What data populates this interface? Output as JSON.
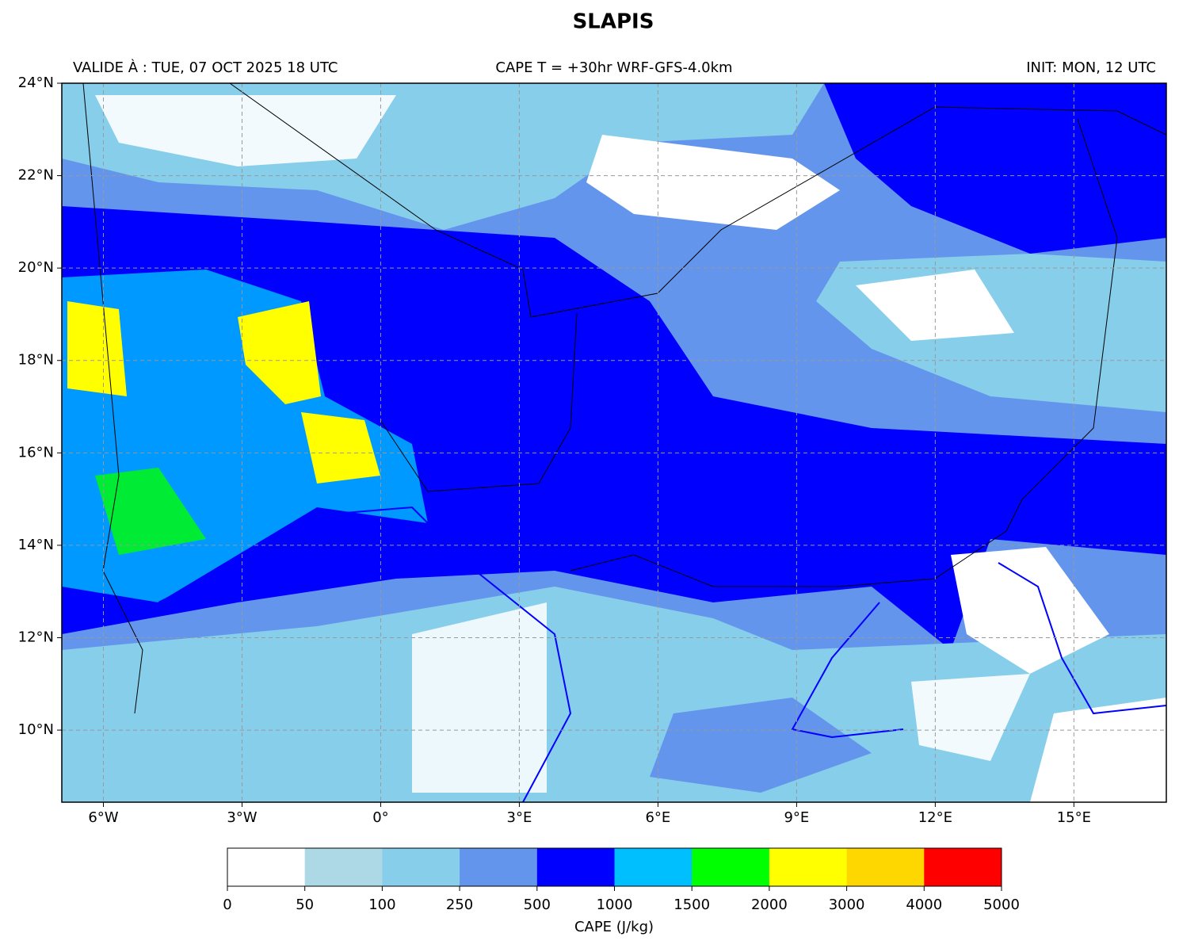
{
  "chart_data": {
    "type": "map",
    "title": "SLAPIS",
    "valid_label": "VALIDE À : TUE, 07 OCT 2025 18 UTC",
    "run_label": "CAPE T = +30hr WRF-GFS-4.0km",
    "init_label": "INIT: MON, 12 UTC",
    "xlim": [
      -6.9,
      17
    ],
    "ylim": [
      8.44,
      24
    ],
    "xticks": [
      {
        "value": -6,
        "label": "6°W"
      },
      {
        "value": -3,
        "label": "3°W"
      },
      {
        "value": 0,
        "label": "0°"
      },
      {
        "value": 3,
        "label": "3°E"
      },
      {
        "value": 6,
        "label": "6°E"
      },
      {
        "value": 9,
        "label": "9°E"
      },
      {
        "value": 12,
        "label": "12°E"
      },
      {
        "value": 15,
        "label": "15°E"
      }
    ],
    "yticks": [
      {
        "value": 10,
        "label": "10°N"
      },
      {
        "value": 12,
        "label": "12°N"
      },
      {
        "value": 14,
        "label": "14°N"
      },
      {
        "value": 16,
        "label": "16°N"
      },
      {
        "value": 18,
        "label": "18°N"
      },
      {
        "value": 20,
        "label": "20°N"
      },
      {
        "value": 22,
        "label": "22°N"
      },
      {
        "value": 24,
        "label": "24°N"
      }
    ],
    "grid": true,
    "colorbar": {
      "label": "CAPE (J/kg)",
      "boundaries": [
        0,
        50,
        100,
        250,
        500,
        1000,
        1500,
        2000,
        3000,
        4000,
        5000
      ],
      "colors": [
        "#ffffff",
        "#add8e6",
        "#87ceeb",
        "#6495ed",
        "#0000ff",
        "#00bfff",
        "#00ff00",
        "#ffff00",
        "#ffd700",
        "#ff0000"
      ]
    }
  }
}
